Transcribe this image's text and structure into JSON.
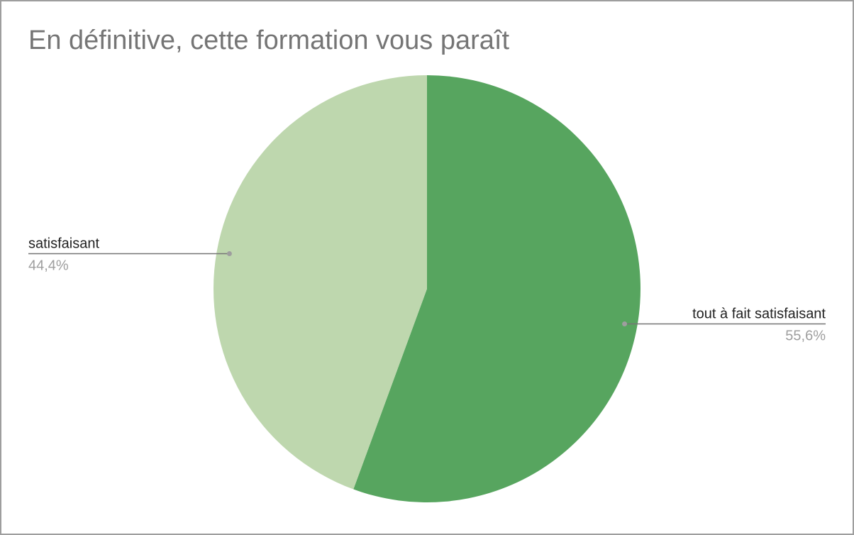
{
  "chart_data": {
    "type": "pie",
    "title": "En définitive, cette formation vous paraît",
    "slices": [
      {
        "label": "tout à fait satisfaisant",
        "value": 55.6,
        "value_label": "55,6%",
        "color": "#57a55f"
      },
      {
        "label": "satisfaisant",
        "value": 44.4,
        "value_label": "44,4%",
        "color": "#bed7ae"
      }
    ],
    "legend": "none",
    "slice_label_color": "#222222",
    "percent_label_color": "#9e9e9e",
    "leader_line_color": "#757575"
  }
}
